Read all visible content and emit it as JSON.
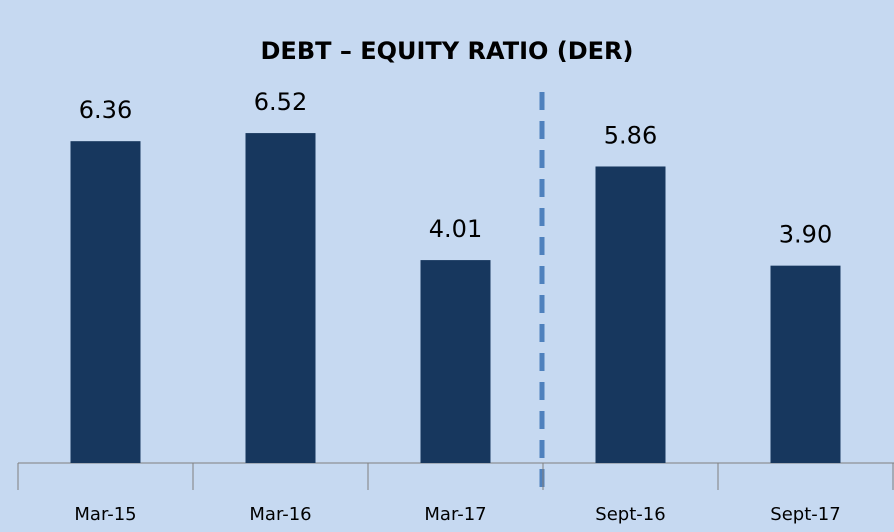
{
  "chart_data": {
    "type": "bar",
    "title": "DEBT – EQUITY RATIO (DER)",
    "categories": [
      "Mar-15",
      "Mar-16",
      "Mar-17",
      "Sept-16",
      "Sept-17"
    ],
    "values": [
      6.36,
      6.52,
      4.01,
      5.86,
      3.9
    ],
    "value_labels": [
      "6.36",
      "6.52",
      "4.01",
      "5.86",
      "3.90"
    ],
    "color": "#17375e"
  }
}
